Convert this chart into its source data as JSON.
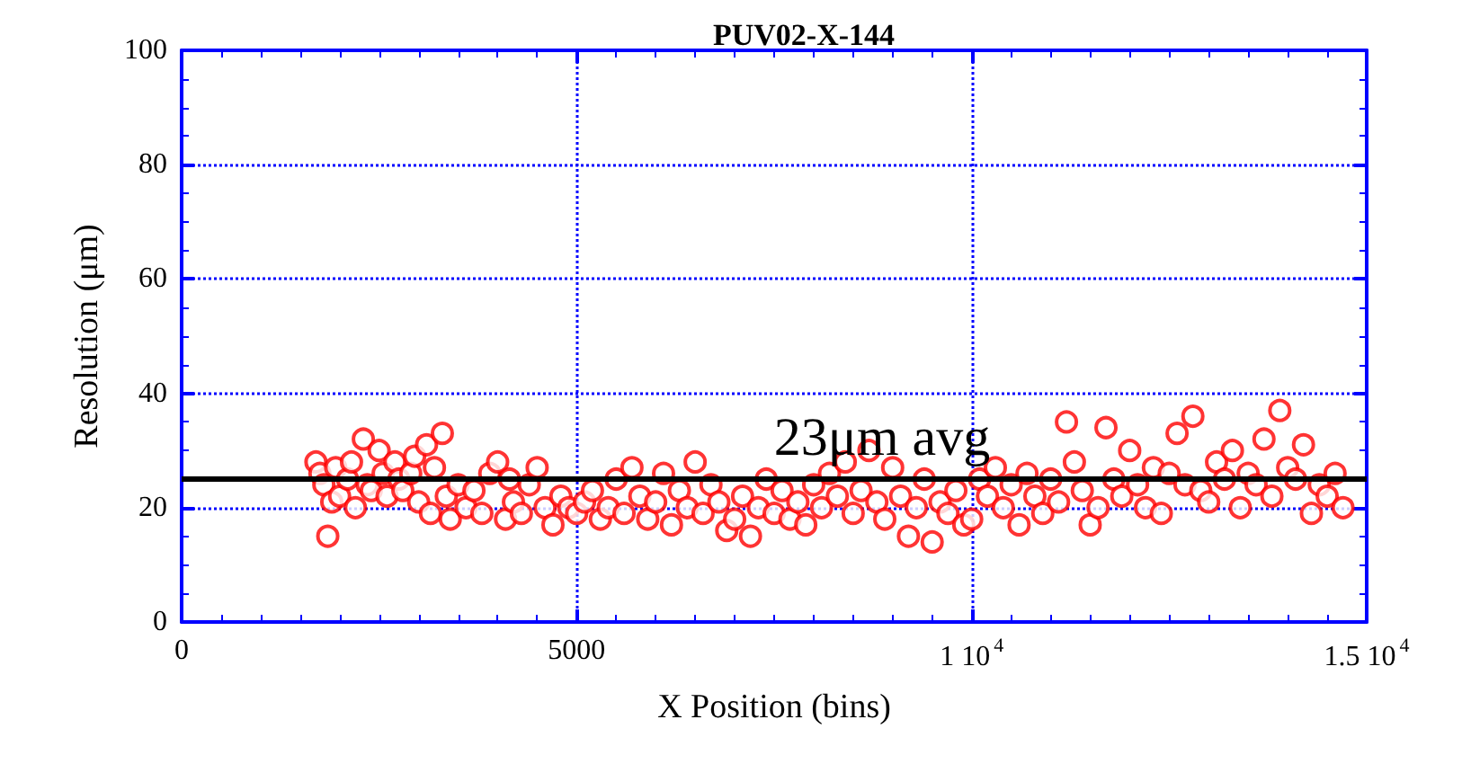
{
  "chart_data": {
    "type": "scatter",
    "title": "PUV02-X-144",
    "xlabel": "X Position (bins)",
    "ylabel": "Resolution (μm)",
    "xlim": [
      0,
      15000
    ],
    "ylim": [
      0,
      100
    ],
    "xticks": [
      0,
      5000,
      {
        "value": 10000,
        "label": "1 10$^{4}$"
      },
      {
        "value": 15000,
        "label": "1.5 10$^{4}$"
      }
    ],
    "yticks": [
      0,
      20,
      40,
      60,
      80,
      100
    ],
    "grid": true,
    "marker": "circle",
    "ref_lines": [
      {
        "axis": "y",
        "value": 25,
        "label": "23μm avg",
        "color": "#000000"
      }
    ],
    "series": [
      {
        "color": "#ff0000",
        "x": [
          1700,
          1750,
          1800,
          1850,
          1900,
          1950,
          2000,
          2100,
          2150,
          2200,
          2300,
          2350,
          2400,
          2500,
          2550,
          2600,
          2700,
          2750,
          2800,
          2900,
          2950,
          3000,
          3100,
          3150,
          3200,
          3300,
          3350,
          3400,
          3500,
          3600,
          3700,
          3800,
          3900,
          4000,
          4100,
          4150,
          4200,
          4300,
          4400,
          4500,
          4600,
          4700,
          4800,
          4900,
          5000,
          5100,
          5200,
          5300,
          5400,
          5500,
          5600,
          5700,
          5800,
          5900,
          6000,
          6100,
          6200,
          6300,
          6400,
          6500,
          6600,
          6700,
          6800,
          6900,
          7000,
          7100,
          7200,
          7300,
          7400,
          7500,
          7600,
          7700,
          7800,
          7900,
          8000,
          8100,
          8200,
          8300,
          8400,
          8500,
          8600,
          8700,
          8800,
          8900,
          9000,
          9100,
          9200,
          9300,
          9400,
          9500,
          9600,
          9700,
          9800,
          9900,
          10000,
          10100,
          10200,
          10300,
          10400,
          10500,
          10600,
          10700,
          10800,
          10900,
          11000,
          11100,
          11200,
          11300,
          11400,
          11500,
          11600,
          11700,
          11800,
          11900,
          12000,
          12100,
          12200,
          12300,
          12400,
          12500,
          12600,
          12700,
          12800,
          12900,
          13000,
          13100,
          13200,
          13300,
          13400,
          13500,
          13600,
          13700,
          13800,
          13900,
          14000,
          14100,
          14200,
          14300,
          14400,
          14500,
          14600,
          14700
        ],
        "values": [
          28,
          26,
          24,
          15,
          21,
          27,
          22,
          25,
          28,
          20,
          32,
          24,
          23,
          30,
          26,
          22,
          28,
          25,
          23,
          26,
          29,
          21,
          31,
          19,
          27,
          33,
          22,
          18,
          24,
          20,
          23,
          19,
          26,
          28,
          18,
          25,
          21,
          19,
          24,
          27,
          20,
          17,
          22,
          20,
          19,
          21,
          23,
          18,
          20,
          25,
          19,
          27,
          22,
          18,
          21,
          26,
          17,
          23,
          20,
          28,
          19,
          24,
          21,
          16,
          18,
          22,
          15,
          20,
          25,
          19,
          23,
          18,
          21,
          17,
          24,
          20,
          26,
          22,
          28,
          19,
          23,
          30,
          21,
          18,
          27,
          22,
          15,
          20,
          25,
          14,
          21,
          19,
          23,
          17,
          18,
          25,
          22,
          27,
          20,
          24,
          17,
          26,
          22,
          19,
          25,
          21,
          35,
          28,
          23,
          17,
          20,
          34,
          25,
          22,
          30,
          24,
          20,
          27,
          19,
          26,
          33,
          24,
          36,
          23,
          21,
          28,
          25,
          30,
          20,
          26,
          24,
          32,
          22,
          37,
          27,
          25,
          31,
          19,
          24,
          22,
          26,
          20
        ]
      }
    ]
  }
}
